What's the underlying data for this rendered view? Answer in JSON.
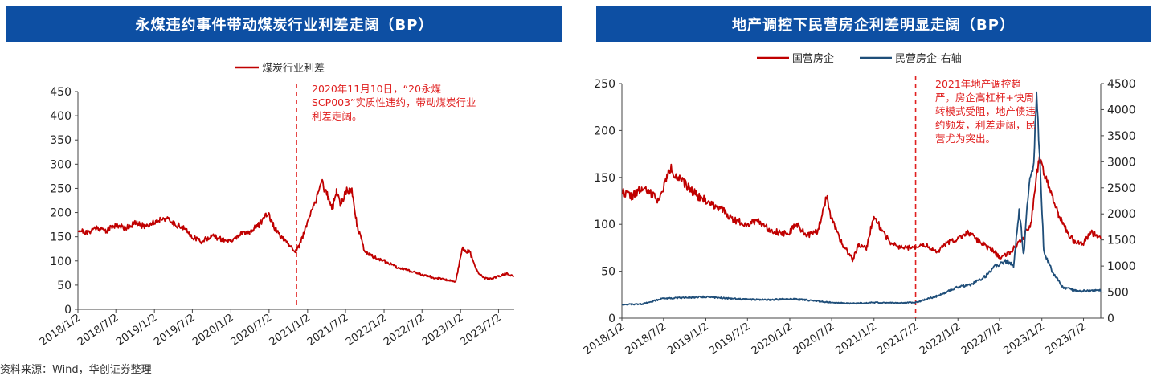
{
  "colors": {
    "title_bar": "#0d4fa3",
    "red": "#c00000",
    "blue": "#1f4e79",
    "annotation": "#e02020"
  },
  "source": "资料来源：Wind，华创证券整理",
  "chart_data": [
    {
      "type": "line",
      "title": "永煤违约事件带动煤炭行业利差走阔（BP）",
      "legend": [
        "煤炭行业利差"
      ],
      "legend_position": "top-center",
      "grid": false,
      "ylim": [
        0,
        450
      ],
      "y_ticks": [
        0,
        50,
        100,
        150,
        200,
        250,
        300,
        350,
        400,
        450
      ],
      "x_ticks": [
        "2018/1/2",
        "2018/7/2",
        "2019/1/2",
        "2019/7/2",
        "2020/1/2",
        "2020/7/2",
        "2021/1/2",
        "2021/7/2",
        "2022/1/2",
        "2022/7/2",
        "2023/1/2",
        "2023/7/2"
      ],
      "x_range": [
        "2018-01-02",
        "2023-09-15"
      ],
      "marker_line": {
        "date": "2020-11-10",
        "style": "dashed"
      },
      "annotation": "2020年11月10日，“20永煤SCP003”实质性违约，带动煤炭行业利差走阔。",
      "series": [
        {
          "name": "煤炭行业利差",
          "color": "#c00000",
          "points": [
            [
              "2018-01-02",
              165
            ],
            [
              "2018-02-15",
              158
            ],
            [
              "2018-04-01",
              170
            ],
            [
              "2018-05-15",
              162
            ],
            [
              "2018-07-02",
              175
            ],
            [
              "2018-08-15",
              168
            ],
            [
              "2018-10-01",
              178
            ],
            [
              "2018-11-15",
              172
            ],
            [
              "2019-01-02",
              180
            ],
            [
              "2019-02-15",
              190
            ],
            [
              "2019-04-01",
              178
            ],
            [
              "2019-05-15",
              170
            ],
            [
              "2019-07-02",
              150
            ],
            [
              "2019-08-15",
              140
            ],
            [
              "2019-10-01",
              152
            ],
            [
              "2019-11-15",
              145
            ],
            [
              "2020-01-02",
              140
            ],
            [
              "2020-02-15",
              155
            ],
            [
              "2020-04-01",
              160
            ],
            [
              "2020-05-15",
              175
            ],
            [
              "2020-06-25",
              200
            ],
            [
              "2020-08-01",
              165
            ],
            [
              "2020-09-15",
              140
            ],
            [
              "2020-10-20",
              128
            ],
            [
              "2020-11-10",
              118
            ],
            [
              "2020-12-01",
              140
            ],
            [
              "2021-01-02",
              180
            ],
            [
              "2021-02-01",
              215
            ],
            [
              "2021-03-10",
              265
            ],
            [
              "2021-04-10",
              230
            ],
            [
              "2021-05-01",
              210
            ],
            [
              "2021-05-20",
              245
            ],
            [
              "2021-06-10",
              215
            ],
            [
              "2021-07-02",
              245
            ],
            [
              "2021-08-01",
              248
            ],
            [
              "2021-08-25",
              175
            ],
            [
              "2021-10-01",
              120
            ],
            [
              "2021-11-15",
              108
            ],
            [
              "2022-01-02",
              100
            ],
            [
              "2022-03-01",
              88
            ],
            [
              "2022-05-01",
              80
            ],
            [
              "2022-07-02",
              72
            ],
            [
              "2022-09-01",
              65
            ],
            [
              "2022-11-01",
              60
            ],
            [
              "2022-12-10",
              58
            ],
            [
              "2023-01-10",
              125
            ],
            [
              "2023-02-15",
              118
            ],
            [
              "2023-03-20",
              80
            ],
            [
              "2023-04-20",
              65
            ],
            [
              "2023-06-01",
              63
            ],
            [
              "2023-07-02",
              68
            ],
            [
              "2023-08-10",
              74
            ],
            [
              "2023-09-15",
              68
            ]
          ]
        }
      ]
    },
    {
      "type": "line",
      "title": "地产调控下民营房企利差明显走阔（BP）",
      "legend": [
        "国营房企",
        "民营房企-右轴"
      ],
      "legend_position": "top-center",
      "grid": false,
      "ylim": [
        0,
        250
      ],
      "y_ticks": [
        0,
        50,
        100,
        150,
        200,
        250
      ],
      "y2lim": [
        0,
        4500
      ],
      "y2_ticks": [
        0,
        500,
        1000,
        1500,
        2000,
        2500,
        3000,
        3500,
        4000,
        4500
      ],
      "x_ticks": [
        "2018/1/2",
        "2018/7/2",
        "2019/1/2",
        "2019/7/2",
        "2020/1/2",
        "2020/7/2",
        "2021/1/2",
        "2021/7/2",
        "2022/1/2",
        "2022/7/2",
        "2023/1/2",
        "2023/7/2"
      ],
      "x_range": [
        "2018-01-02",
        "2023-09-15"
      ],
      "marker_line": {
        "date": "2021-07-02",
        "style": "dashed"
      },
      "annotation": "2021年地产调控趋严，房企高杠杆+快周转模式受阻，地产债违约频发，利差走阔，民营尤为突出。",
      "series": [
        {
          "name": "国营房企",
          "axis": "left",
          "color": "#c00000",
          "points": [
            [
              "2018-01-02",
              135
            ],
            [
              "2018-02-15",
              130
            ],
            [
              "2018-04-01",
              138
            ],
            [
              "2018-05-15",
              132
            ],
            [
              "2018-06-15",
              125
            ],
            [
              "2018-07-02",
              140
            ],
            [
              "2018-08-01",
              160
            ],
            [
              "2018-09-01",
              150
            ],
            [
              "2018-10-15",
              140
            ],
            [
              "2018-12-01",
              130
            ],
            [
              "2019-01-02",
              125
            ],
            [
              "2019-03-01",
              118
            ],
            [
              "2019-05-01",
              105
            ],
            [
              "2019-07-02",
              100
            ],
            [
              "2019-08-15",
              105
            ],
            [
              "2019-10-01",
              95
            ],
            [
              "2019-12-01",
              90
            ],
            [
              "2020-01-02",
              92
            ],
            [
              "2020-02-01",
              100
            ],
            [
              "2020-03-15",
              88
            ],
            [
              "2020-05-01",
              92
            ],
            [
              "2020-06-10",
              130
            ],
            [
              "2020-07-02",
              105
            ],
            [
              "2020-08-15",
              80
            ],
            [
              "2020-10-01",
              62
            ],
            [
              "2020-10-25",
              78
            ],
            [
              "2020-12-01",
              75
            ],
            [
              "2021-01-02",
              110
            ],
            [
              "2021-02-01",
              95
            ],
            [
              "2021-03-15",
              80
            ],
            [
              "2021-05-01",
              75
            ],
            [
              "2021-07-02",
              75
            ],
            [
              "2021-08-15",
              78
            ],
            [
              "2021-10-01",
              70
            ],
            [
              "2021-11-15",
              80
            ],
            [
              "2022-01-02",
              85
            ],
            [
              "2022-02-15",
              92
            ],
            [
              "2022-04-01",
              82
            ],
            [
              "2022-06-01",
              72
            ],
            [
              "2022-07-02",
              65
            ],
            [
              "2022-08-15",
              70
            ],
            [
              "2022-10-01",
              82
            ],
            [
              "2022-11-15",
              100
            ],
            [
              "2022-12-20",
              170
            ],
            [
              "2023-01-15",
              150
            ],
            [
              "2023-02-15",
              130
            ],
            [
              "2023-03-15",
              110
            ],
            [
              "2023-04-15",
              95
            ],
            [
              "2023-05-20",
              82
            ],
            [
              "2023-07-02",
              80
            ],
            [
              "2023-08-01",
              92
            ],
            [
              "2023-09-15",
              85
            ]
          ]
        },
        {
          "name": "民营房企-右轴",
          "axis": "right",
          "color": "#1f4e79",
          "points": [
            [
              "2018-01-02",
              260
            ],
            [
              "2018-04-01",
              270
            ],
            [
              "2018-07-02",
              380
            ],
            [
              "2018-10-01",
              390
            ],
            [
              "2019-01-02",
              410
            ],
            [
              "2019-04-01",
              380
            ],
            [
              "2019-07-02",
              360
            ],
            [
              "2019-10-01",
              350
            ],
            [
              "2020-01-02",
              370
            ],
            [
              "2020-04-01",
              340
            ],
            [
              "2020-07-02",
              300
            ],
            [
              "2020-10-01",
              280
            ],
            [
              "2021-01-02",
              300
            ],
            [
              "2021-04-01",
              290
            ],
            [
              "2021-07-02",
              300
            ],
            [
              "2021-10-01",
              420
            ],
            [
              "2022-01-02",
              600
            ],
            [
              "2022-03-01",
              650
            ],
            [
              "2022-05-01",
              800
            ],
            [
              "2022-06-15",
              1000
            ],
            [
              "2022-08-01",
              1100
            ],
            [
              "2022-09-01",
              1000
            ],
            [
              "2022-09-25",
              2100
            ],
            [
              "2022-10-15",
              1200
            ],
            [
              "2022-11-05",
              2500
            ],
            [
              "2022-11-25",
              2800
            ],
            [
              "2022-12-10",
              4200
            ],
            [
              "2022-12-25",
              3000
            ],
            [
              "2023-01-10",
              1300
            ],
            [
              "2023-02-15",
              900
            ],
            [
              "2023-04-01",
              600
            ],
            [
              "2023-06-01",
              520
            ],
            [
              "2023-09-15",
              530
            ]
          ]
        }
      ]
    }
  ]
}
